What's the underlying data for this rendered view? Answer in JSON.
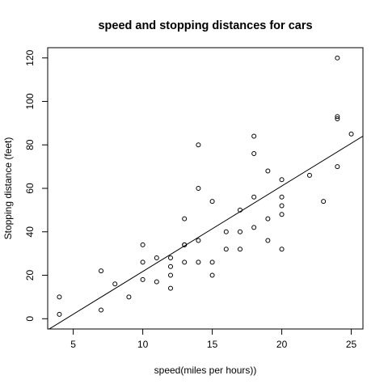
{
  "chart_data": {
    "type": "scatter",
    "title": "speed and stopping distances for cars",
    "xlabel": "speed(miles per hours))",
    "ylabel": "Stopping distance (feet)",
    "xlim": [
      3.16,
      25.84
    ],
    "ylim": [
      -4.72,
      124.72
    ],
    "xticks": [
      5,
      10,
      15,
      20,
      25
    ],
    "yticks": [
      0,
      20,
      40,
      60,
      80,
      100,
      120
    ],
    "grid": false,
    "legend": "none",
    "point_color": "#000000",
    "series": [
      {
        "x": [
          4,
          4,
          7,
          7,
          8,
          9,
          10,
          10,
          10,
          11,
          11,
          12,
          12,
          12,
          12,
          13,
          13,
          13,
          13,
          14,
          14,
          14,
          14,
          15,
          15,
          15,
          16,
          16,
          17,
          17,
          17,
          18,
          18,
          18,
          18,
          19,
          19,
          19,
          20,
          20,
          20,
          20,
          20,
          22,
          23,
          24,
          24,
          24,
          24,
          25
        ],
        "y": [
          2,
          10,
          4,
          22,
          16,
          10,
          18,
          26,
          34,
          17,
          28,
          14,
          20,
          24,
          28,
          26,
          34,
          34,
          46,
          26,
          36,
          60,
          80,
          20,
          26,
          54,
          32,
          40,
          32,
          40,
          50,
          42,
          56,
          76,
          84,
          36,
          46,
          68,
          32,
          48,
          52,
          56,
          64,
          66,
          54,
          70,
          92,
          93,
          120,
          85
        ]
      }
    ],
    "fit_line": {
      "intercept": -17.579,
      "slope": 3.932
    }
  }
}
